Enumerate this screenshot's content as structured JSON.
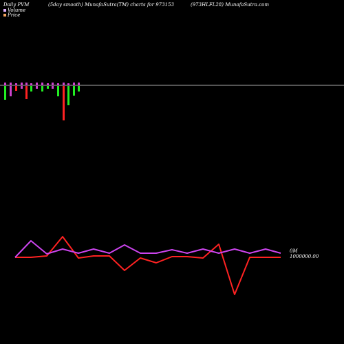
{
  "header": {
    "left": "Daily PVM",
    "center_left": "(5day smooth) MunafaSutra(TM) charts for 973153",
    "center_right": "(973HLFL28) MunafaSutra.com"
  },
  "legend": [
    {
      "label": "Volume",
      "color": "#e0b0ff"
    },
    {
      "label": "Price",
      "color": "#f4a460"
    }
  ],
  "colors": {
    "background": "#000000",
    "axis_line": "#aaaaaa",
    "bar_up": "#22ee22",
    "bar_down": "#ff2222",
    "bar_neutral": "#cc44cc",
    "line_volume": "#cc44ee",
    "line_price": "#ff2222"
  },
  "value_labels": {
    "volume_now": "0M",
    "price_now": "1000000.00"
  },
  "chart_data": {
    "type": "bar",
    "bars": {
      "up": [
        5,
        2,
        1,
        3,
        2,
        1,
        0,
        2,
        0,
        4,
        0,
        0,
        0,
        0
      ],
      "down": [
        0,
        3,
        2,
        0,
        4,
        0,
        2,
        0,
        1,
        0,
        10,
        0,
        0,
        0
      ],
      "green": [
        5,
        0,
        0,
        0,
        0,
        2,
        0,
        2,
        1,
        4,
        0,
        6,
        4,
        2
      ],
      "colors": [
        "green",
        "magenta",
        "red",
        "magenta",
        "red",
        "green",
        "magenta",
        "green",
        "green",
        "green",
        "red",
        "green",
        "green",
        "green"
      ]
    },
    "volume_line": [
      0.0,
      1.0,
      0.2,
      0.5,
      0.2,
      0.5,
      0.2,
      0.8,
      0.2,
      0.2,
      0.5,
      0.2,
      0.5,
      0.2,
      0.5,
      0.2,
      0.5,
      0.2
    ],
    "price_line": [
      0.0,
      0.0,
      0.1,
      1.2,
      0.0,
      0.1,
      0.1,
      -0.8,
      0.0,
      0.0,
      -0.3,
      0.0,
      0.0,
      -0.1,
      0.8,
      -2.3,
      0.0,
      0.0,
      0.0
    ]
  }
}
